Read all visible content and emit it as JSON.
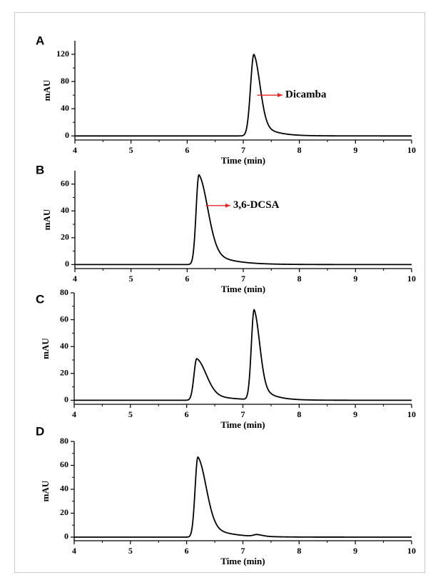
{
  "figure": {
    "colors": {
      "trace": "#000000",
      "annotation_arrow": "#e8262a",
      "frame_border": "#c9c9c9"
    }
  },
  "chart_data": [
    {
      "panel": "A",
      "type": "line",
      "xlabel": "Time (min)",
      "ylabel": "mAU",
      "xlim": [
        4,
        10
      ],
      "ylim": [
        -6,
        140
      ],
      "xticks": [
        4,
        5,
        6,
        7,
        8,
        9,
        10
      ],
      "yticks": [
        0,
        40,
        80,
        120
      ],
      "baseline": 0,
      "peaks": [
        {
          "t": 7.19,
          "height": 120,
          "rise": 0.06,
          "tail": 0.11
        }
      ],
      "annotations": [
        {
          "text": "Dicamba",
          "x": 7.25,
          "y": 60,
          "x_text": 7.75
        }
      ],
      "grid": false
    },
    {
      "panel": "B",
      "type": "line",
      "xlabel": "Time (min)",
      "ylabel": "mAU",
      "xlim": [
        4,
        10
      ],
      "ylim": [
        -3,
        70
      ],
      "xticks": [
        4,
        5,
        6,
        7,
        8,
        9,
        10
      ],
      "yticks": [
        0,
        20,
        40,
        60
      ],
      "baseline": 0,
      "peaks": [
        {
          "t": 6.21,
          "height": 67,
          "rise": 0.05,
          "tail": 0.16
        }
      ],
      "annotations": [
        {
          "text": "3,6-DCSA",
          "x": 6.33,
          "y": 44,
          "x_text": 6.82
        }
      ],
      "grid": false
    },
    {
      "panel": "C",
      "type": "line",
      "xlabel": "Time (min)",
      "ylabel": "mAU",
      "xlim": [
        4,
        10
      ],
      "ylim": [
        -3,
        80
      ],
      "xticks": [
        4,
        5,
        6,
        7,
        8,
        9,
        10
      ],
      "yticks": [
        0,
        20,
        40,
        60,
        80
      ],
      "baseline": 0,
      "peaks": [
        {
          "t": 6.18,
          "height": 31,
          "rise": 0.05,
          "tail": 0.17
        },
        {
          "t": 7.2,
          "height": 67,
          "rise": 0.05,
          "tail": 0.1
        }
      ],
      "annotations": [],
      "grid": false
    },
    {
      "panel": "D",
      "type": "line",
      "xlabel": "Time (min)",
      "ylabel": "mAU",
      "xlim": [
        4,
        10
      ],
      "ylim": [
        -3,
        80
      ],
      "xticks": [
        4,
        5,
        6,
        7,
        8,
        9,
        10
      ],
      "yticks": [
        0,
        20,
        40,
        60,
        80
      ],
      "baseline": 0,
      "peaks": [
        {
          "t": 6.2,
          "height": 67,
          "rise": 0.05,
          "tail": 0.15
        },
        {
          "t": 7.25,
          "height": 1.5,
          "rise": 0.06,
          "tail": 0.1
        }
      ],
      "annotations": [],
      "grid": false
    }
  ]
}
